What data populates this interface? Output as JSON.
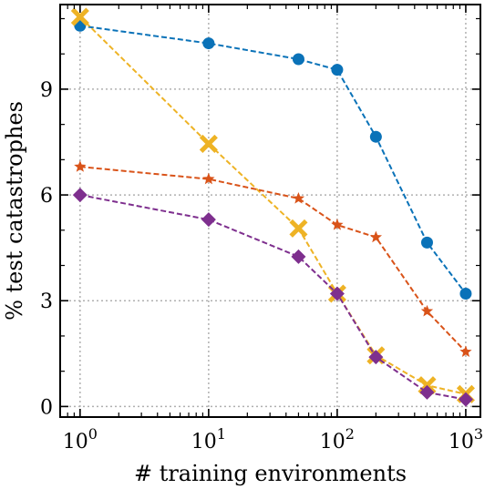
{
  "chart_data": {
    "type": "line",
    "xscale": "log",
    "xlabel": "# training environments",
    "ylabel": "% test catastrophes",
    "xlim": [
      0.7,
      1300
    ],
    "ylim": [
      -0.3,
      11.4
    ],
    "grid": true,
    "xticks": [
      {
        "value": 1,
        "base": "10",
        "exp": "0"
      },
      {
        "value": 10,
        "base": "10",
        "exp": "1"
      },
      {
        "value": 100,
        "base": "10",
        "exp": "2"
      },
      {
        "value": 1000,
        "base": "10",
        "exp": "3"
      }
    ],
    "yticks": [
      {
        "value": 0,
        "label": "0"
      },
      {
        "value": 3,
        "label": "3"
      },
      {
        "value": 6,
        "label": "6"
      },
      {
        "value": 9,
        "label": "9"
      }
    ],
    "x": [
      1,
      10,
      50,
      100,
      200,
      500,
      1000
    ],
    "series": [
      {
        "color": "#0a72b8",
        "marker": "circle",
        "values": [
          10.8,
          10.3,
          9.85,
          9.55,
          7.65,
          4.65,
          3.2
        ]
      },
      {
        "color": "#eeb325",
        "marker": "x",
        "values": [
          11.05,
          7.45,
          5.05,
          3.2,
          1.45,
          0.6,
          0.35
        ]
      },
      {
        "color": "#d95319",
        "marker": "star",
        "values": [
          6.8,
          6.45,
          5.9,
          5.15,
          4.8,
          2.7,
          1.55
        ]
      },
      {
        "color": "#7e2f8e",
        "marker": "diamond",
        "values": [
          6.0,
          5.3,
          4.25,
          3.2,
          1.4,
          0.4,
          0.2
        ]
      }
    ]
  }
}
